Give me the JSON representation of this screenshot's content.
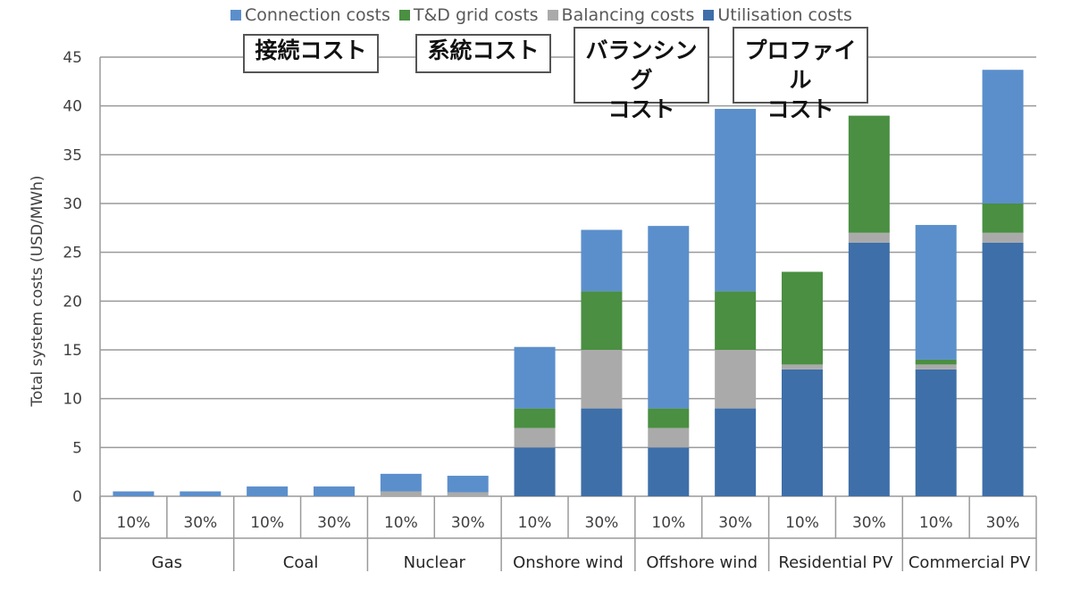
{
  "chart_data": {
    "type": "bar",
    "stacked": true,
    "ylabel": "Total system costs (USD/MWh)",
    "ylim": [
      0,
      45
    ],
    "yticks": [
      0,
      5,
      10,
      15,
      20,
      25,
      30,
      35,
      40,
      45
    ],
    "grid": true,
    "legend_position": "top",
    "groups": [
      "Gas",
      "Coal",
      "Nuclear",
      "Onshore wind",
      "Offshore wind",
      "Residential PV",
      "Commercial PV"
    ],
    "subcategories": [
      "10%",
      "30%"
    ],
    "series": [
      {
        "name": "Utilisation costs",
        "color": "#3e6fa8",
        "values": [
          0,
          0,
          0,
          0,
          0,
          0,
          5,
          9,
          5,
          9,
          13,
          26,
          13,
          26
        ]
      },
      {
        "name": "Balancing costs",
        "color": "#aaaaaa",
        "values": [
          0,
          0,
          0,
          0,
          0.5,
          0.4,
          2,
          6,
          2,
          6,
          0.5,
          1,
          0.5,
          1
        ]
      },
      {
        "name": "T&D grid costs",
        "color": "#4a8f42",
        "values": [
          0,
          0,
          0,
          0,
          0,
          0,
          2,
          6,
          2,
          6,
          9.5,
          12,
          0.5,
          3
        ]
      },
      {
        "name": "Connection costs",
        "color": "#5b8fcb",
        "values": [
          0.5,
          0.5,
          1,
          1,
          1.8,
          1.7,
          6.3,
          6.3,
          18.7,
          18.7,
          0,
          0,
          13.8,
          13.7
        ]
      }
    ],
    "legend": [
      "Connection costs",
      "T&D grid costs",
      "Balancing costs",
      "Utilisation costs"
    ]
  },
  "annotations": [
    {
      "text": "接続コスト"
    },
    {
      "text": "系統コスト"
    },
    {
      "text": "バランシング\nコスト"
    },
    {
      "text": "プロファイル\nコスト"
    }
  ]
}
